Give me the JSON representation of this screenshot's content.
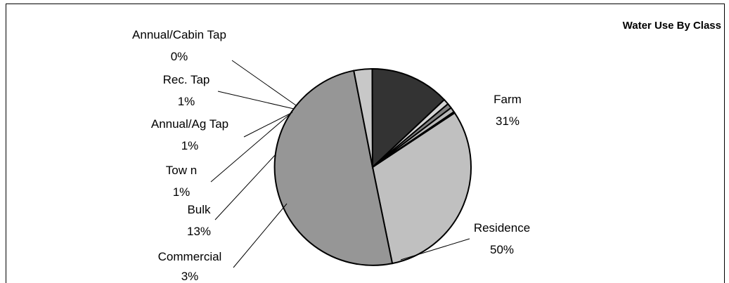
{
  "chart_data": {
    "type": "pie",
    "title": "Water Use By Class",
    "slices": [
      {
        "label": "Farm",
        "display": "31%",
        "value": 31.0,
        "color": "#c0c0c0"
      },
      {
        "label": "Residence",
        "display": "50%",
        "value": 50.0,
        "color": "#969696"
      },
      {
        "label": "Commercial",
        "display": "3%",
        "value": 3.0,
        "color": "#c8c8c8"
      },
      {
        "label": "Bulk",
        "display": "13%",
        "value": 13.0,
        "color": "#333333"
      },
      {
        "label": "Tow n",
        "display": "1%",
        "value": 0.9,
        "color": "#d4d4d4"
      },
      {
        "label": "Annual/Ag Tap",
        "display": "1%",
        "value": 0.8,
        "color": "#808080"
      },
      {
        "label": "Rec. Tap",
        "display": "1%",
        "value": 0.8,
        "color": "#b8b8b8"
      },
      {
        "label": "Annual/Cabin Tap",
        "display": "0%",
        "value": 0.2,
        "color": "#e8e8e8"
      }
    ],
    "legend": "none"
  }
}
